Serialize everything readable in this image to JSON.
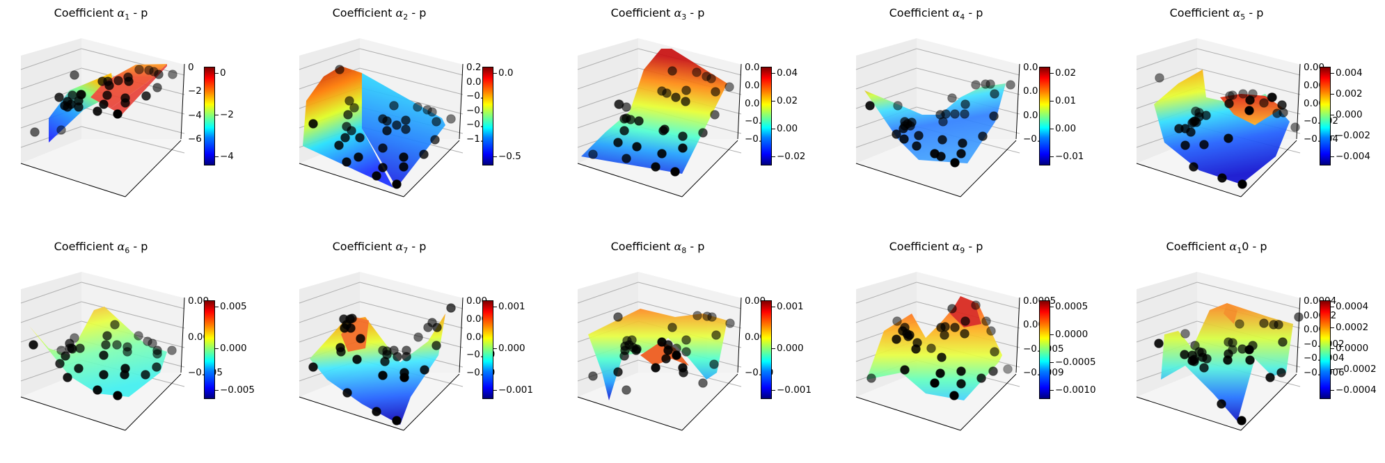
{
  "figure": {
    "layout": {
      "rows": 2,
      "cols": 5
    },
    "colormap": "jet",
    "colormap_stops": [
      "#00007f",
      "#0000ff",
      "#007fff",
      "#00ffff",
      "#7fff7f",
      "#ffff00",
      "#ff7f00",
      "#ff0000",
      "#7f0000"
    ],
    "scatter_color": "#000000"
  },
  "panels": [
    {
      "title_prefix": "Coefficient ",
      "symbol": "α",
      "subscript": "1",
      "suffix": " - p",
      "colorbar_ticks": [
        "0",
        "−2",
        "−4"
      ],
      "z_ticks": [
        "0",
        "−2",
        "−4",
        "−6"
      ]
    },
    {
      "title_prefix": "Coefficient ",
      "symbol": "α",
      "subscript": "2",
      "suffix": " - p",
      "colorbar_ticks": [
        "0.0",
        "−0.5"
      ],
      "z_ticks": [
        "0.2",
        "0.0",
        "−0.2",
        "−0.5",
        "−0.7",
        "−1.0"
      ]
    },
    {
      "title_prefix": "Coefficient ",
      "symbol": "α",
      "subscript": "3",
      "suffix": " - p",
      "colorbar_ticks": [
        "0.04",
        "0.02",
        "0.00",
        "−0.02"
      ],
      "z_ticks": [
        "0.0",
        "0.0",
        "0.0",
        "−0.0",
        "−0.0"
      ]
    },
    {
      "title_prefix": "Coefficient ",
      "symbol": "α",
      "subscript": "4",
      "suffix": " - p",
      "colorbar_ticks": [
        "0.02",
        "0.01",
        "0.00",
        "−0.01"
      ],
      "z_ticks": [
        "0.0",
        "0.0",
        "0.0",
        "−0.0"
      ]
    },
    {
      "title_prefix": "Coefficient ",
      "symbol": "α",
      "subscript": "5",
      "suffix": " - p",
      "colorbar_ticks": [
        "0.004",
        "0.002",
        "0.000",
        "−0.002",
        "−0.004"
      ],
      "z_ticks": [
        "0.00",
        "0.00",
        "0.00",
        "−0.002",
        "−0.004"
      ]
    },
    {
      "title_prefix": "Coefficient ",
      "symbol": "α",
      "subscript": "6",
      "suffix": " - p",
      "colorbar_ticks": [
        "0.005",
        "0.000",
        "−0.005"
      ],
      "z_ticks": [
        "0.00",
        "0.00",
        "−0.005"
      ]
    },
    {
      "title_prefix": "Coefficient ",
      "symbol": "α",
      "subscript": "7",
      "suffix": " - p",
      "colorbar_ticks": [
        "0.001",
        "0.000",
        "−0.001"
      ],
      "z_ticks": [
        "0.00",
        "0.00",
        "0.00",
        "−0.00",
        "−0.00"
      ]
    },
    {
      "title_prefix": "Coefficient ",
      "symbol": "α",
      "subscript": "8",
      "suffix": " - p",
      "colorbar_ticks": [
        "0.001",
        "0.000",
        "−0.001"
      ],
      "z_ticks": [
        "0.00",
        "0.00",
        "−0.00"
      ]
    },
    {
      "title_prefix": "Coefficient ",
      "symbol": "α",
      "subscript": "9",
      "suffix": " - p",
      "colorbar_ticks": [
        "0.0005",
        "0.0000",
        "−0.0005",
        "−0.0010"
      ],
      "z_ticks": [
        "0.0005",
        "0.000",
        "−0.0005",
        "−0.0009"
      ]
    },
    {
      "title_prefix": "Coefficient ",
      "symbol": "α",
      "subscript": "1",
      "suffix": "0 - p",
      "colorbar_ticks": [
        "0.0004",
        "0.0002",
        "0.0000",
        "−0.0002",
        "−0.0004"
      ],
      "z_ticks": [
        "0.0004",
        "0.0002",
        "0.000",
        "−0.0002",
        "−0.0004",
        "−0.0006"
      ]
    }
  ],
  "chart_data": [
    {
      "type": "surface3d",
      "title": "Coefficient α1 - p",
      "colorbar_range": [
        -5.8,
        0.8
      ],
      "colorbar_ticks": [
        0,
        -2,
        -4
      ],
      "z_ticks": [
        0,
        -2,
        -4,
        -6
      ],
      "scatter_points": 32
    },
    {
      "type": "surface3d",
      "title": "Coefficient α2 - p",
      "colorbar_range": [
        -1.05,
        0.3
      ],
      "colorbar_ticks": [
        0.0,
        -0.5
      ],
      "z_ticks": [
        0.25,
        0.0,
        -0.25,
        -0.5,
        -0.75,
        -1.0
      ],
      "scatter_points": 32
    },
    {
      "type": "surface3d",
      "title": "Coefficient α3 - p",
      "colorbar_range": [
        -0.035,
        0.04
      ],
      "colorbar_ticks": [
        0.04,
        0.02,
        0.0,
        -0.02
      ],
      "z_ticks": [
        0.04,
        0.02,
        0.0,
        -0.02,
        -0.04
      ],
      "scatter_points": 32
    },
    {
      "type": "surface3d",
      "title": "Coefficient α4 - p",
      "colorbar_range": [
        -0.014,
        0.022
      ],
      "colorbar_ticks": [
        0.02,
        0.01,
        0.0,
        -0.01
      ],
      "z_ticks": [
        0.02,
        0.01,
        0.0,
        -0.01
      ],
      "scatter_points": 32
    },
    {
      "type": "surface3d",
      "title": "Coefficient α5 - p",
      "colorbar_range": [
        -0.0045,
        0.005
      ],
      "colorbar_ticks": [
        0.004,
        0.002,
        0.0,
        -0.002,
        -0.004
      ],
      "z_ticks": [
        0.004,
        0.002,
        0.0,
        -0.002,
        -0.004
      ],
      "scatter_points": 32
    },
    {
      "type": "surface3d",
      "title": "Coefficient α6 - p",
      "colorbar_range": [
        -0.0065,
        0.0065
      ],
      "colorbar_ticks": [
        0.005,
        0.0,
        -0.005
      ],
      "z_ticks": [
        0.005,
        0.0,
        -0.005
      ],
      "scatter_points": 32
    },
    {
      "type": "surface3d",
      "title": "Coefficient α7 - p",
      "colorbar_range": [
        -0.0018,
        0.0016
      ],
      "colorbar_ticks": [
        0.001,
        0.0,
        -0.001
      ],
      "z_ticks": [
        0.002,
        0.001,
        0.0,
        -0.001,
        -0.002
      ],
      "scatter_points": 32
    },
    {
      "type": "surface3d",
      "title": "Coefficient α8 - p",
      "colorbar_range": [
        -0.0015,
        0.0012
      ],
      "colorbar_ticks": [
        0.001,
        0.0,
        -0.001
      ],
      "z_ticks": [
        0.001,
        0.0,
        -0.001
      ],
      "scatter_points": 32
    },
    {
      "type": "surface3d",
      "title": "Coefficient α9 - p",
      "colorbar_range": [
        -0.0011,
        0.0009
      ],
      "colorbar_ticks": [
        0.0005,
        0.0,
        -0.0005,
        -0.001
      ],
      "z_ticks": [
        0.0005,
        0.0,
        -0.0005,
        -0.0009
      ],
      "scatter_points": 32
    },
    {
      "type": "surface3d",
      "title": "Coefficient α10 - p",
      "colorbar_range": [
        -0.00048,
        0.00048
      ],
      "colorbar_ticks": [
        0.0004,
        0.0002,
        0.0,
        -0.0002,
        -0.0004
      ],
      "z_ticks": [
        0.0004,
        0.0002,
        0.0,
        -0.0002,
        -0.0004,
        -0.0006
      ],
      "scatter_points": 32
    }
  ]
}
